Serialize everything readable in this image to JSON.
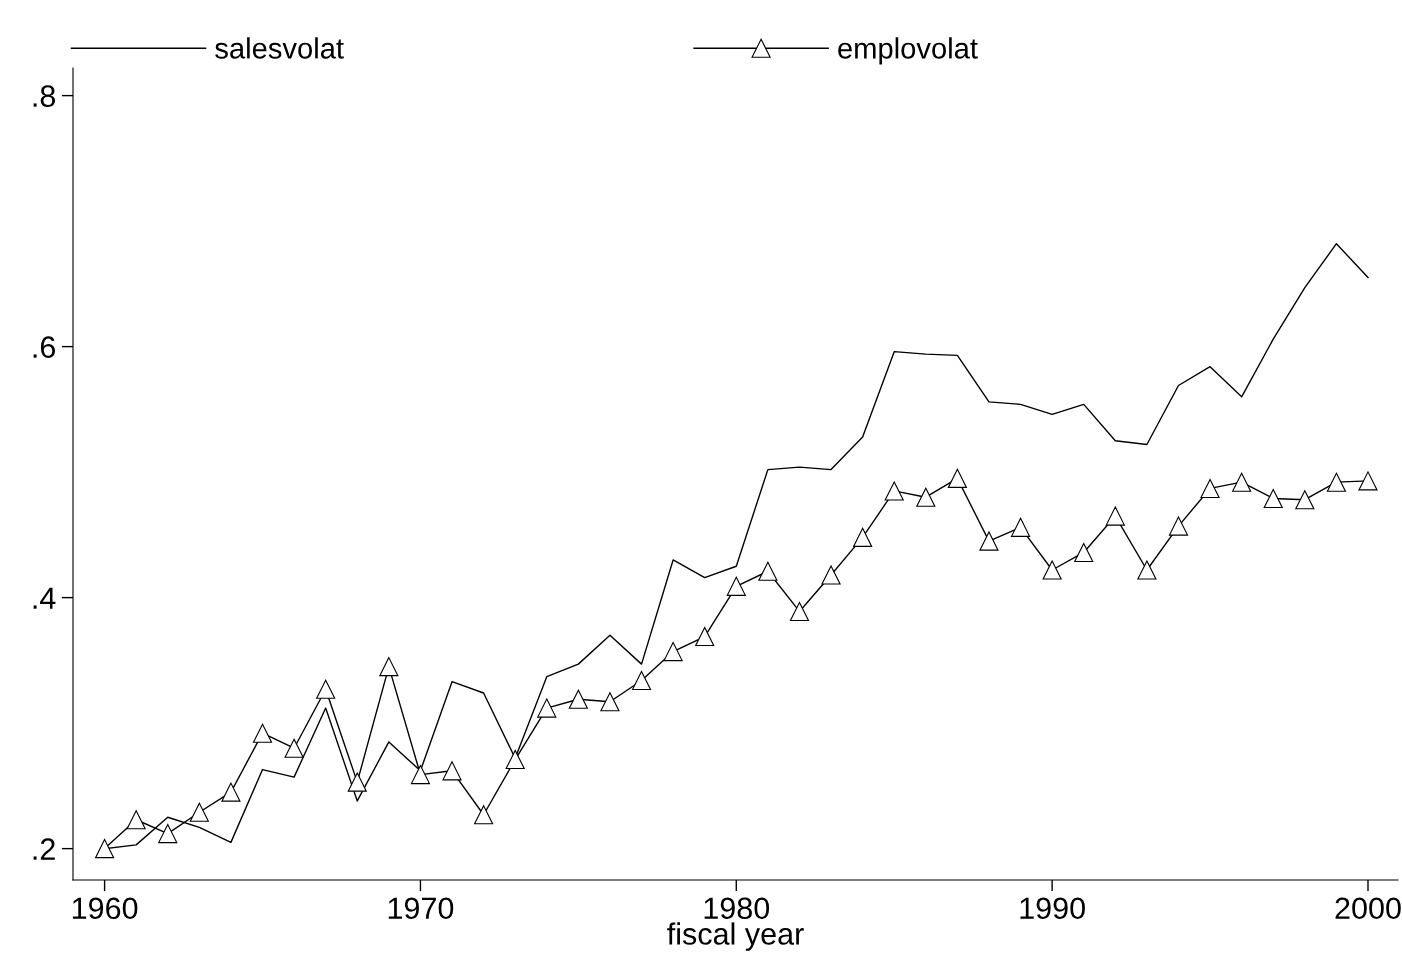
{
  "chart_data": {
    "type": "line",
    "xlabel": "fiscal year",
    "x": [
      1960,
      1961,
      1962,
      1963,
      1964,
      1965,
      1966,
      1967,
      1968,
      1969,
      1970,
      1971,
      1972,
      1973,
      1974,
      1975,
      1976,
      1977,
      1978,
      1979,
      1980,
      1981,
      1982,
      1983,
      1984,
      1985,
      1986,
      1987,
      1988,
      1989,
      1990,
      1991,
      1992,
      1993,
      1994,
      1995,
      1996,
      1997,
      1998,
      1999,
      2000
    ],
    "series": [
      {
        "name": "salesvolat",
        "color": "#000000",
        "marker": "none",
        "values": [
          0.2,
          0.203,
          0.225,
          0.217,
          0.205,
          0.263,
          0.257,
          0.312,
          0.238,
          0.285,
          0.262,
          0.333,
          0.324,
          0.272,
          0.337,
          0.347,
          0.37,
          0.347,
          0.43,
          0.416,
          0.425,
          0.502,
          0.504,
          0.502,
          0.528,
          0.596,
          0.594,
          0.593,
          0.556,
          0.554,
          0.546,
          0.554,
          0.525,
          0.522,
          0.569,
          0.584,
          0.56,
          0.606,
          0.647,
          0.682,
          0.655
        ]
      },
      {
        "name": "emplovolat",
        "color": "#000000",
        "marker": "triangle",
        "values": [
          0.2,
          0.223,
          0.212,
          0.229,
          0.245,
          0.292,
          0.28,
          0.327,
          0.253,
          0.345,
          0.259,
          0.262,
          0.227,
          0.271,
          0.312,
          0.319,
          0.317,
          0.334,
          0.357,
          0.369,
          0.409,
          0.421,
          0.389,
          0.418,
          0.448,
          0.485,
          0.48,
          0.495,
          0.445,
          0.456,
          0.422,
          0.436,
          0.465,
          0.422,
          0.457,
          0.487,
          0.492,
          0.479,
          0.478,
          0.492,
          0.493
        ]
      }
    ],
    "xlim": [
      1959.0,
      2000.95
    ],
    "ylim": [
      0.175,
      0.822
    ],
    "xticks": [
      1960,
      1970,
      1980,
      1990,
      2000
    ],
    "yticks": [
      {
        "value": 0.2,
        "label": ".2"
      },
      {
        "value": 0.4,
        "label": ".4"
      },
      {
        "value": 0.6,
        "label": ".6"
      },
      {
        "value": 0.8,
        "label": ".8"
      }
    ],
    "legend": "top",
    "grid": false,
    "line_style": "solid"
  }
}
